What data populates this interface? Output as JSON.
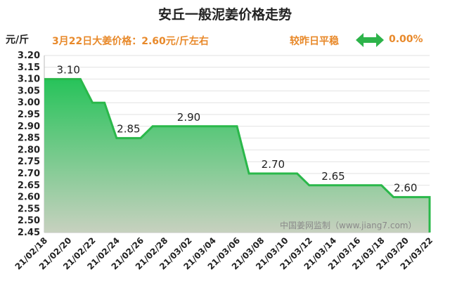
{
  "header": {
    "title": "安丘一般泥姜价格走势",
    "unit": "元/斤",
    "price_note": "3月22日大姜价格：2.60元/斤左右",
    "trend_text": "较昨日平稳",
    "trend_value": "0.00%",
    "trend_icon": "double-arrow-icon",
    "trend_color": "#2db34a"
  },
  "watermark": "中国姜网监制（www.jiang7.com）",
  "colors": {
    "line": "#2ab84a",
    "fill_top": "#27c35a",
    "fill_bottom": "#c7d1bf",
    "grid": "#e2e2e2"
  },
  "chart_data": {
    "type": "area",
    "title": "安丘一般泥姜价格走势",
    "ylabel": "元/斤",
    "ylim": [
      2.45,
      3.2
    ],
    "yticks": [
      "3.20",
      "3.15",
      "3.10",
      "3.05",
      "3.00",
      "2.95",
      "2.90",
      "2.85",
      "2.80",
      "2.75",
      "2.70",
      "2.65",
      "2.60",
      "2.55",
      "2.50",
      "2.45"
    ],
    "xlim": [
      "21/02/18",
      "21/03/22"
    ],
    "xticks": [
      "21/02/18",
      "21/02/20",
      "21/02/22",
      "21/02/24",
      "21/02/26",
      "21/02/28",
      "21/03/02",
      "21/03/04",
      "21/03/06",
      "21/03/08",
      "21/03/10",
      "21/03/12",
      "21/03/14",
      "21/03/16",
      "21/03/18",
      "21/03/20",
      "21/03/22"
    ],
    "grid": true,
    "series": [
      {
        "points": [
          [
            "21/02/18",
            3.1
          ],
          [
            "21/02/21",
            3.1
          ],
          [
            "21/02/22",
            3.0
          ],
          [
            "21/02/23",
            3.0
          ],
          [
            "21/02/24",
            2.85
          ],
          [
            "21/02/26",
            2.85
          ],
          [
            "21/02/27",
            2.9
          ],
          [
            "21/03/06",
            2.9
          ],
          [
            "21/03/07",
            2.7
          ],
          [
            "21/03/11",
            2.7
          ],
          [
            "21/03/12",
            2.65
          ],
          [
            "21/03/18",
            2.65
          ],
          [
            "21/03/19",
            2.6
          ],
          [
            "21/03/22",
            2.6
          ]
        ]
      }
    ],
    "data_labels": [
      {
        "date": "21/02/20",
        "value": 3.1,
        "text": "3.10"
      },
      {
        "date": "21/02/25",
        "value": 2.85,
        "text": "2.85"
      },
      {
        "date": "21/03/02",
        "value": 2.9,
        "text": "2.90"
      },
      {
        "date": "21/03/09",
        "value": 2.7,
        "text": "2.70"
      },
      {
        "date": "21/03/14",
        "value": 2.65,
        "text": "2.65"
      },
      {
        "date": "21/03/20",
        "value": 2.6,
        "text": "2.60"
      }
    ]
  }
}
